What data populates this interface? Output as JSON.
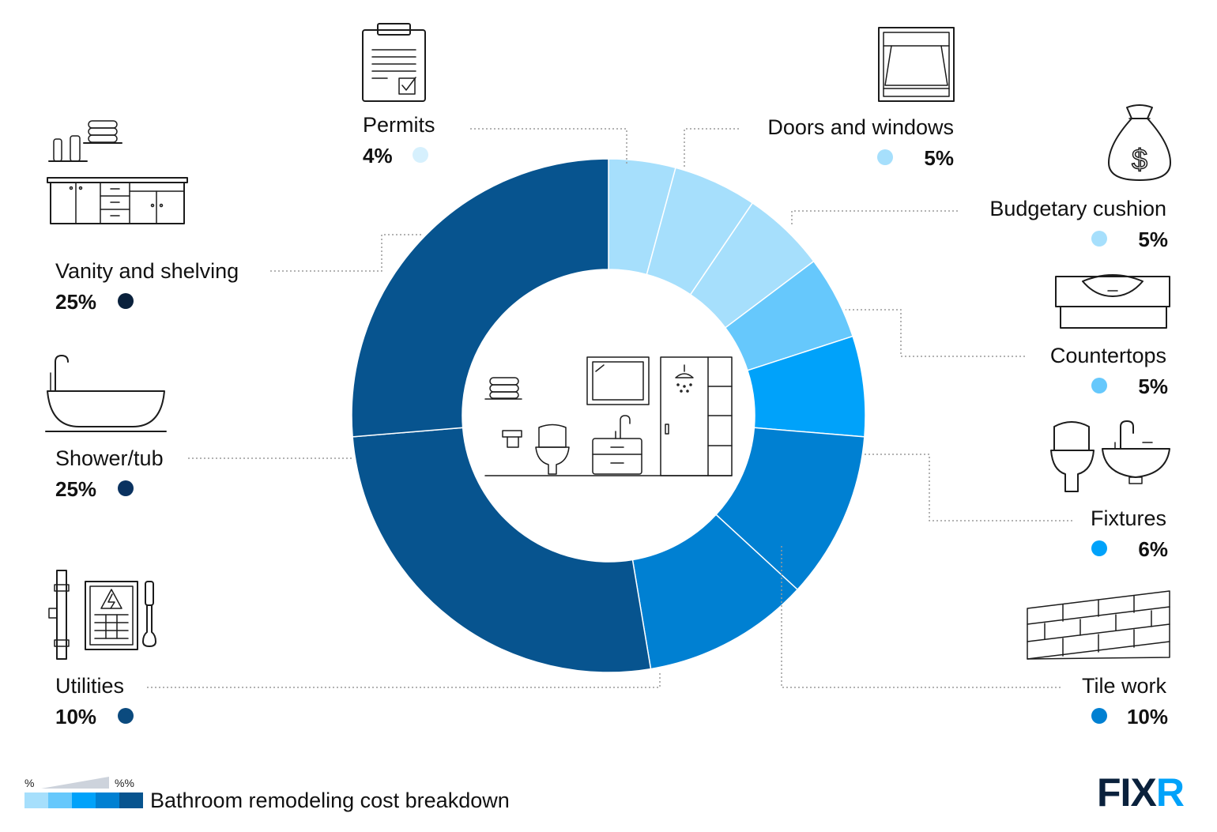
{
  "chart_data": {
    "type": "pie",
    "style": "donut",
    "categories": [
      "Permits",
      "Doors and windows",
      "Budgetary cushion",
      "Countertops",
      "Fixtures",
      "Tile work",
      "Utilities",
      "Shower/tub",
      "Vanity and shelving"
    ],
    "values": [
      4,
      5,
      5,
      5,
      6,
      10,
      10,
      25,
      25
    ],
    "value_labels": [
      "4%",
      "5%",
      "5%",
      "5%",
      "6%",
      "10%",
      "10%",
      "25%",
      "25%"
    ],
    "colors": [
      "#a6dffc",
      "#a6dffc",
      "#a6dffc",
      "#66c8fc",
      "#00a2fa",
      "#0080d2",
      "#0080d2",
      "#07548f",
      "#07548f"
    ],
    "dot_colors": [
      "#d6f0fd",
      "#a6dffc",
      "#a6dffc",
      "#66c8fc",
      "#00a2fa",
      "#0080d2",
      "#0b4a7e",
      "#0a3260",
      "#0a213c"
    ]
  },
  "legend": {
    "min_label": "%",
    "max_label": "%%",
    "title": "Bathroom remodeling cost breakdown",
    "swatches": [
      "#a6dffc",
      "#66c8fc",
      "#00a2fa",
      "#0080d2",
      "#07548f"
    ]
  },
  "brand": {
    "name": "FIXR",
    "text_color": "#0a213c",
    "accent_color": "#00a2fa"
  },
  "icons": [
    "clipboard-icon",
    "window-icon",
    "money-bag-icon",
    "countertop-sink-icon",
    "toilet-sink-icon",
    "tile-wall-icon",
    "towels-shelf-icon",
    "vanity-icon",
    "bathtub-icon",
    "utilities-icon",
    "bathroom-scene-icon"
  ]
}
